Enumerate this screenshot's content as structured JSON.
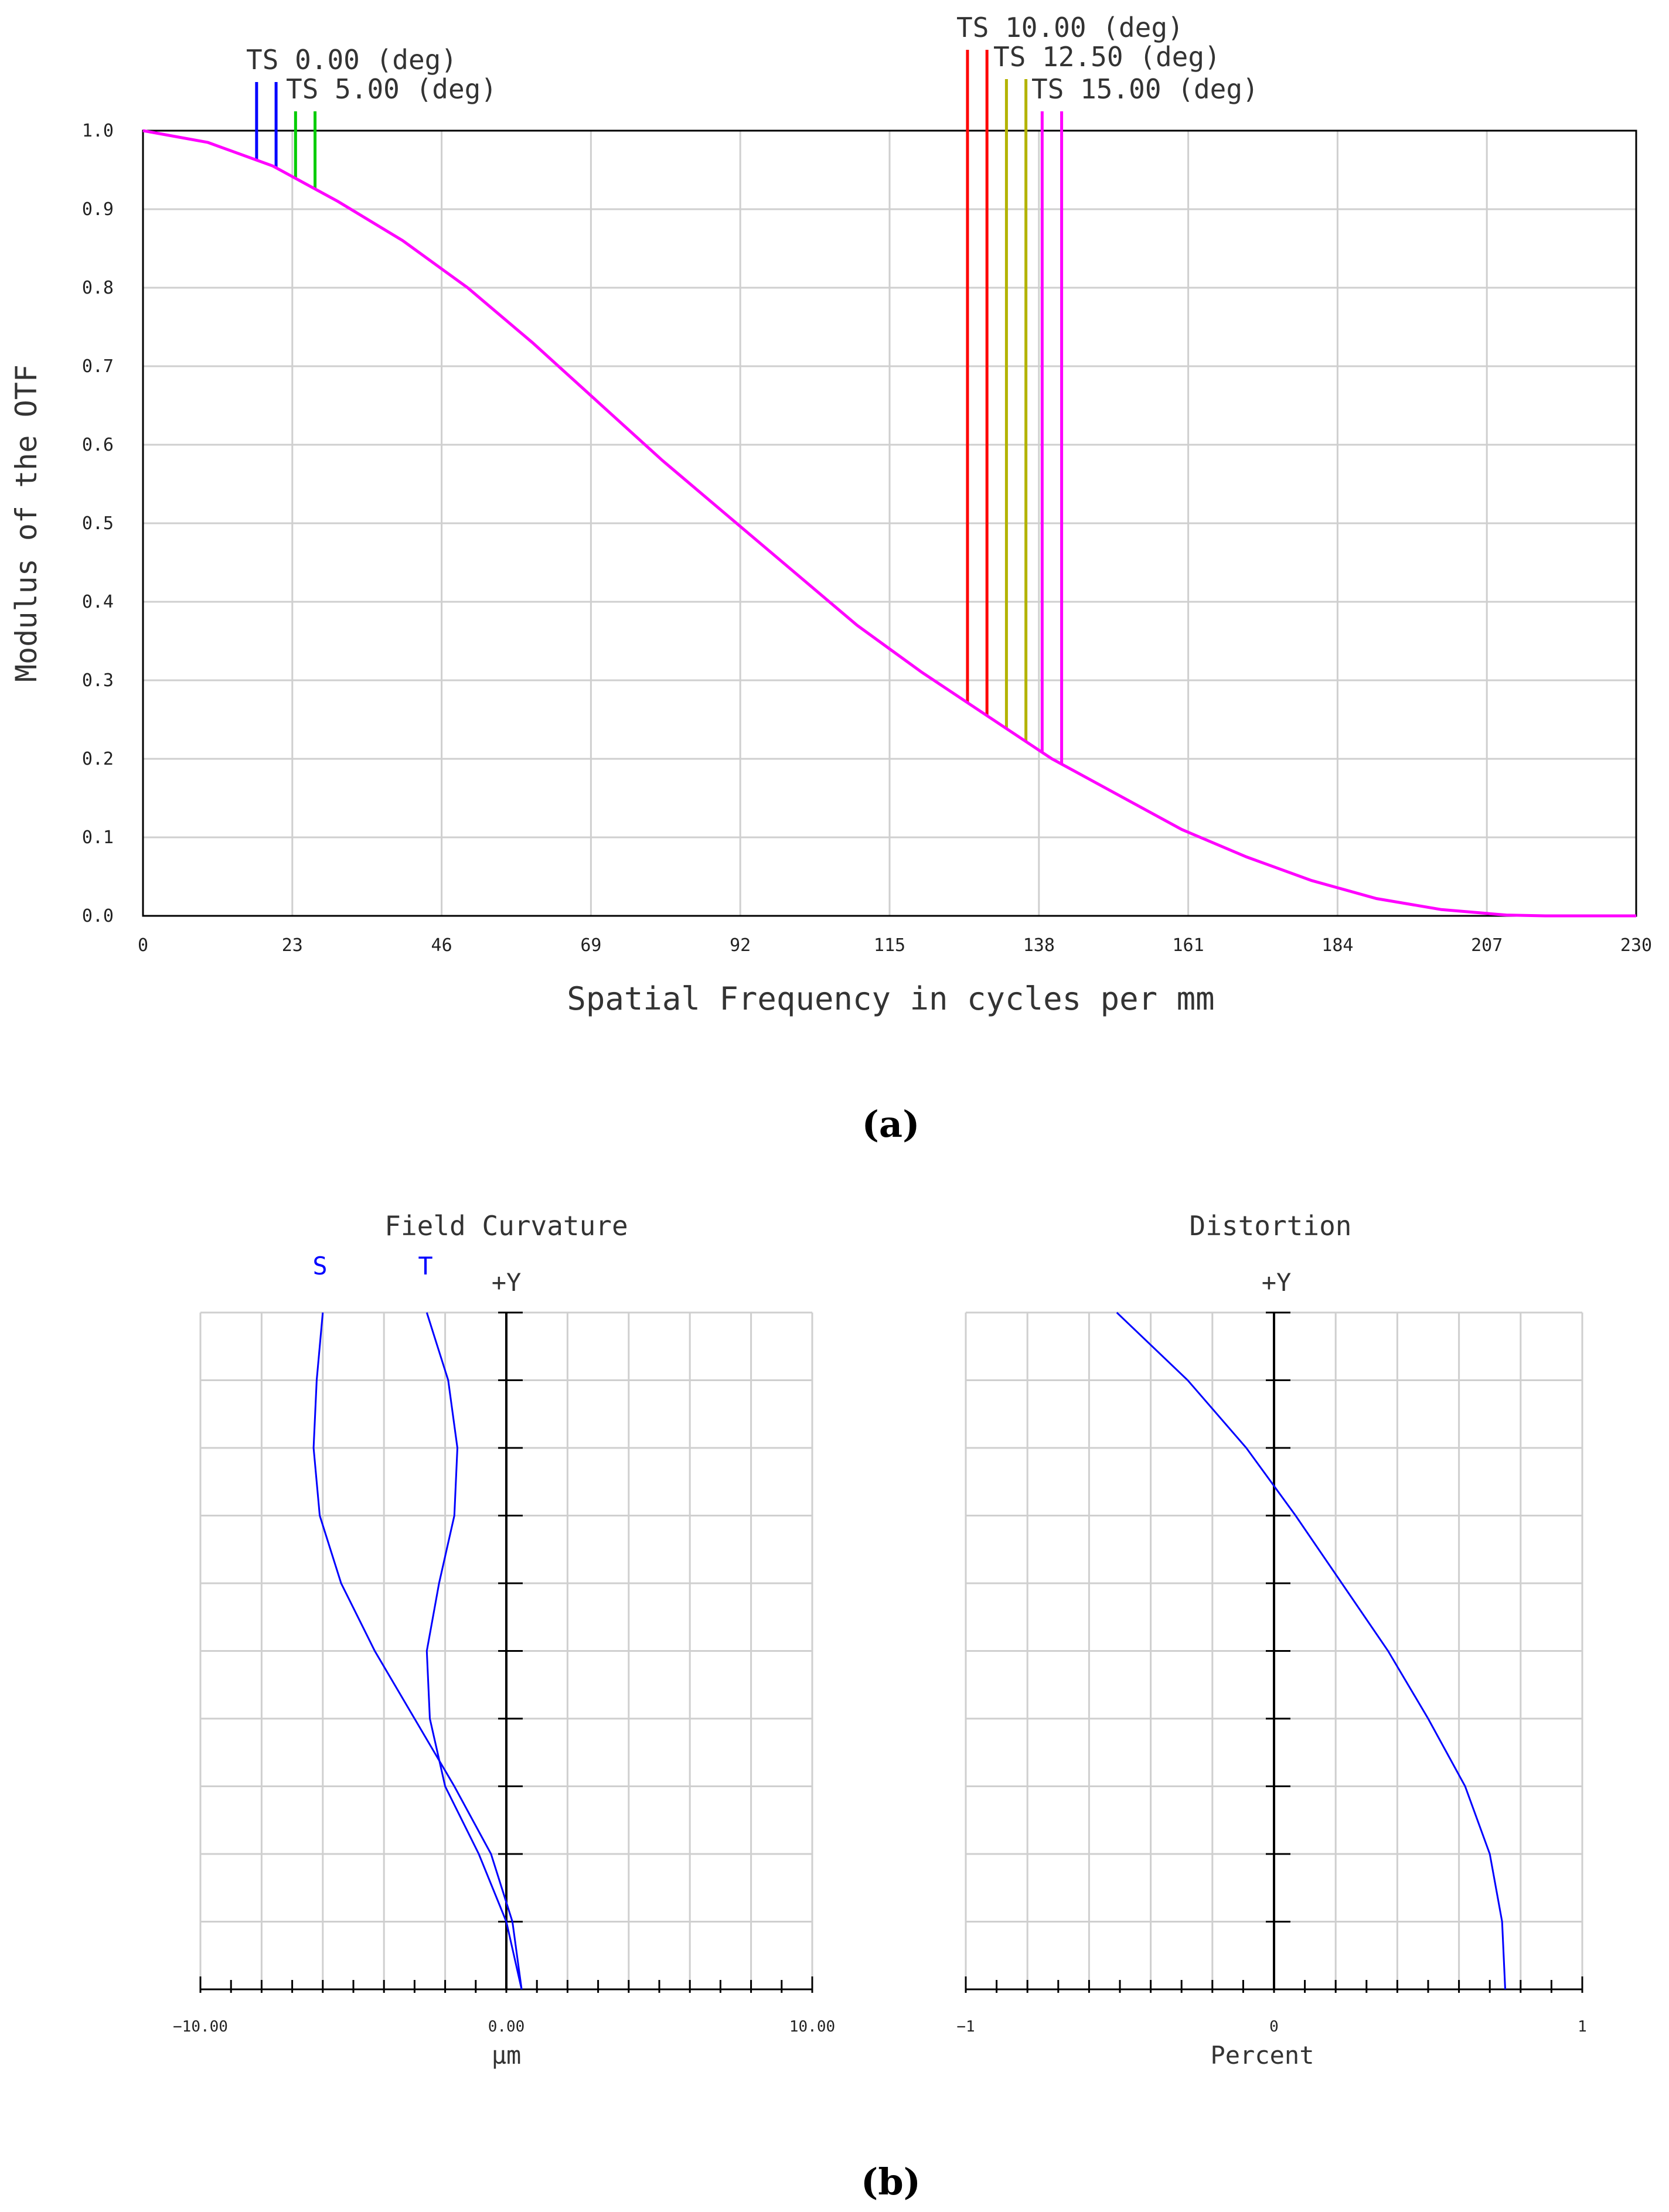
{
  "chart_data": [
    {
      "type": "line",
      "title": "",
      "xlabel": "Spatial Frequency in cycles per mm",
      "ylabel": "Modulus of the OTF",
      "xlim": [
        0,
        230
      ],
      "ylim": [
        0,
        1
      ],
      "x_ticks": [
        "0",
        "23",
        "46",
        "69",
        "92",
        "115",
        "138",
        "161",
        "184",
        "207",
        "230"
      ],
      "y_ticks": [
        "0.0",
        "0.1",
        "0.2",
        "0.3",
        "0.4",
        "0.5",
        "0.6",
        "0.7",
        "0.8",
        "0.9",
        "1.0"
      ],
      "grid": true,
      "series": [
        {
          "color": "#ff00ff",
          "x": [
            0,
            10,
            20,
            30,
            40,
            50,
            60,
            70,
            80,
            90,
            100,
            110,
            120,
            130,
            140,
            150,
            160,
            170,
            180,
            190,
            200,
            210,
            216,
            230
          ],
          "y": [
            1.0,
            0.985,
            0.955,
            0.91,
            0.86,
            0.8,
            0.73,
            0.655,
            0.58,
            0.51,
            0.44,
            0.37,
            0.31,
            0.255,
            0.2,
            0.155,
            0.11,
            0.075,
            0.045,
            0.022,
            0.008,
            0.001,
            0.0,
            0.0
          ]
        }
      ],
      "field_markers": [
        {
          "label": "TS 0.00 (deg)",
          "color": "#0000ff",
          "x": [
            17.5,
            20.5
          ]
        },
        {
          "label": "TS 5.00 (deg)",
          "color": "#00cc00",
          "x": [
            23.5,
            26.5
          ]
        },
        {
          "label": "TS 10.00 (deg)",
          "color": "#ff0000",
          "x": [
            127,
            130
          ]
        },
        {
          "label": "TS 12.50 (deg)",
          "color": "#b3b300",
          "x": [
            133,
            136
          ]
        },
        {
          "label": "TS 15.00 (deg)",
          "color": "#ff00ff",
          "x": [
            138.5,
            141.5
          ]
        }
      ],
      "caption": "(a)"
    },
    {
      "type": "line",
      "title": "Field Curvature",
      "xlabel": "µm",
      "ylabel": "+Y",
      "xlim": [
        -10,
        10
      ],
      "ylim": [
        0,
        1
      ],
      "x_ticks": [
        "-10.00",
        "0.00",
        "10.00"
      ],
      "grid": true,
      "series": [
        {
          "name": "S",
          "color": "#0000ff",
          "x": [
            0.5,
            0.2,
            -0.5,
            -1.7,
            -3.0,
            -4.3,
            -5.4,
            -6.1,
            -6.3,
            -6.2,
            -6.0
          ],
          "y": [
            0.0,
            0.1,
            0.2,
            0.3,
            0.4,
            0.5,
            0.6,
            0.7,
            0.8,
            0.9,
            1.0
          ]
        },
        {
          "name": "T",
          "color": "#0000ff",
          "x": [
            0.5,
            0.0,
            -0.9,
            -2.0,
            -2.5,
            -2.6,
            -2.2,
            -1.7,
            -1.6,
            -1.9,
            -2.6
          ],
          "y": [
            0.0,
            0.1,
            0.2,
            0.3,
            0.4,
            0.5,
            0.6,
            0.7,
            0.8,
            0.9,
            1.0
          ]
        }
      ]
    },
    {
      "type": "line",
      "title": "Distortion",
      "xlabel": "Percent",
      "ylabel": "+Y",
      "xlim": [
        -1,
        1
      ],
      "ylim": [
        0,
        1
      ],
      "x_ticks": [
        "-1",
        "0",
        "1"
      ],
      "grid": true,
      "series": [
        {
          "color": "#0000ff",
          "x": [
            0.75,
            0.74,
            0.7,
            0.62,
            0.5,
            0.37,
            0.22,
            0.07,
            -0.09,
            -0.28,
            -0.51
          ],
          "y": [
            0.0,
            0.1,
            0.2,
            0.3,
            0.4,
            0.5,
            0.6,
            0.7,
            0.8,
            0.9,
            1.0
          ]
        }
      ],
      "caption": "(b)"
    }
  ]
}
